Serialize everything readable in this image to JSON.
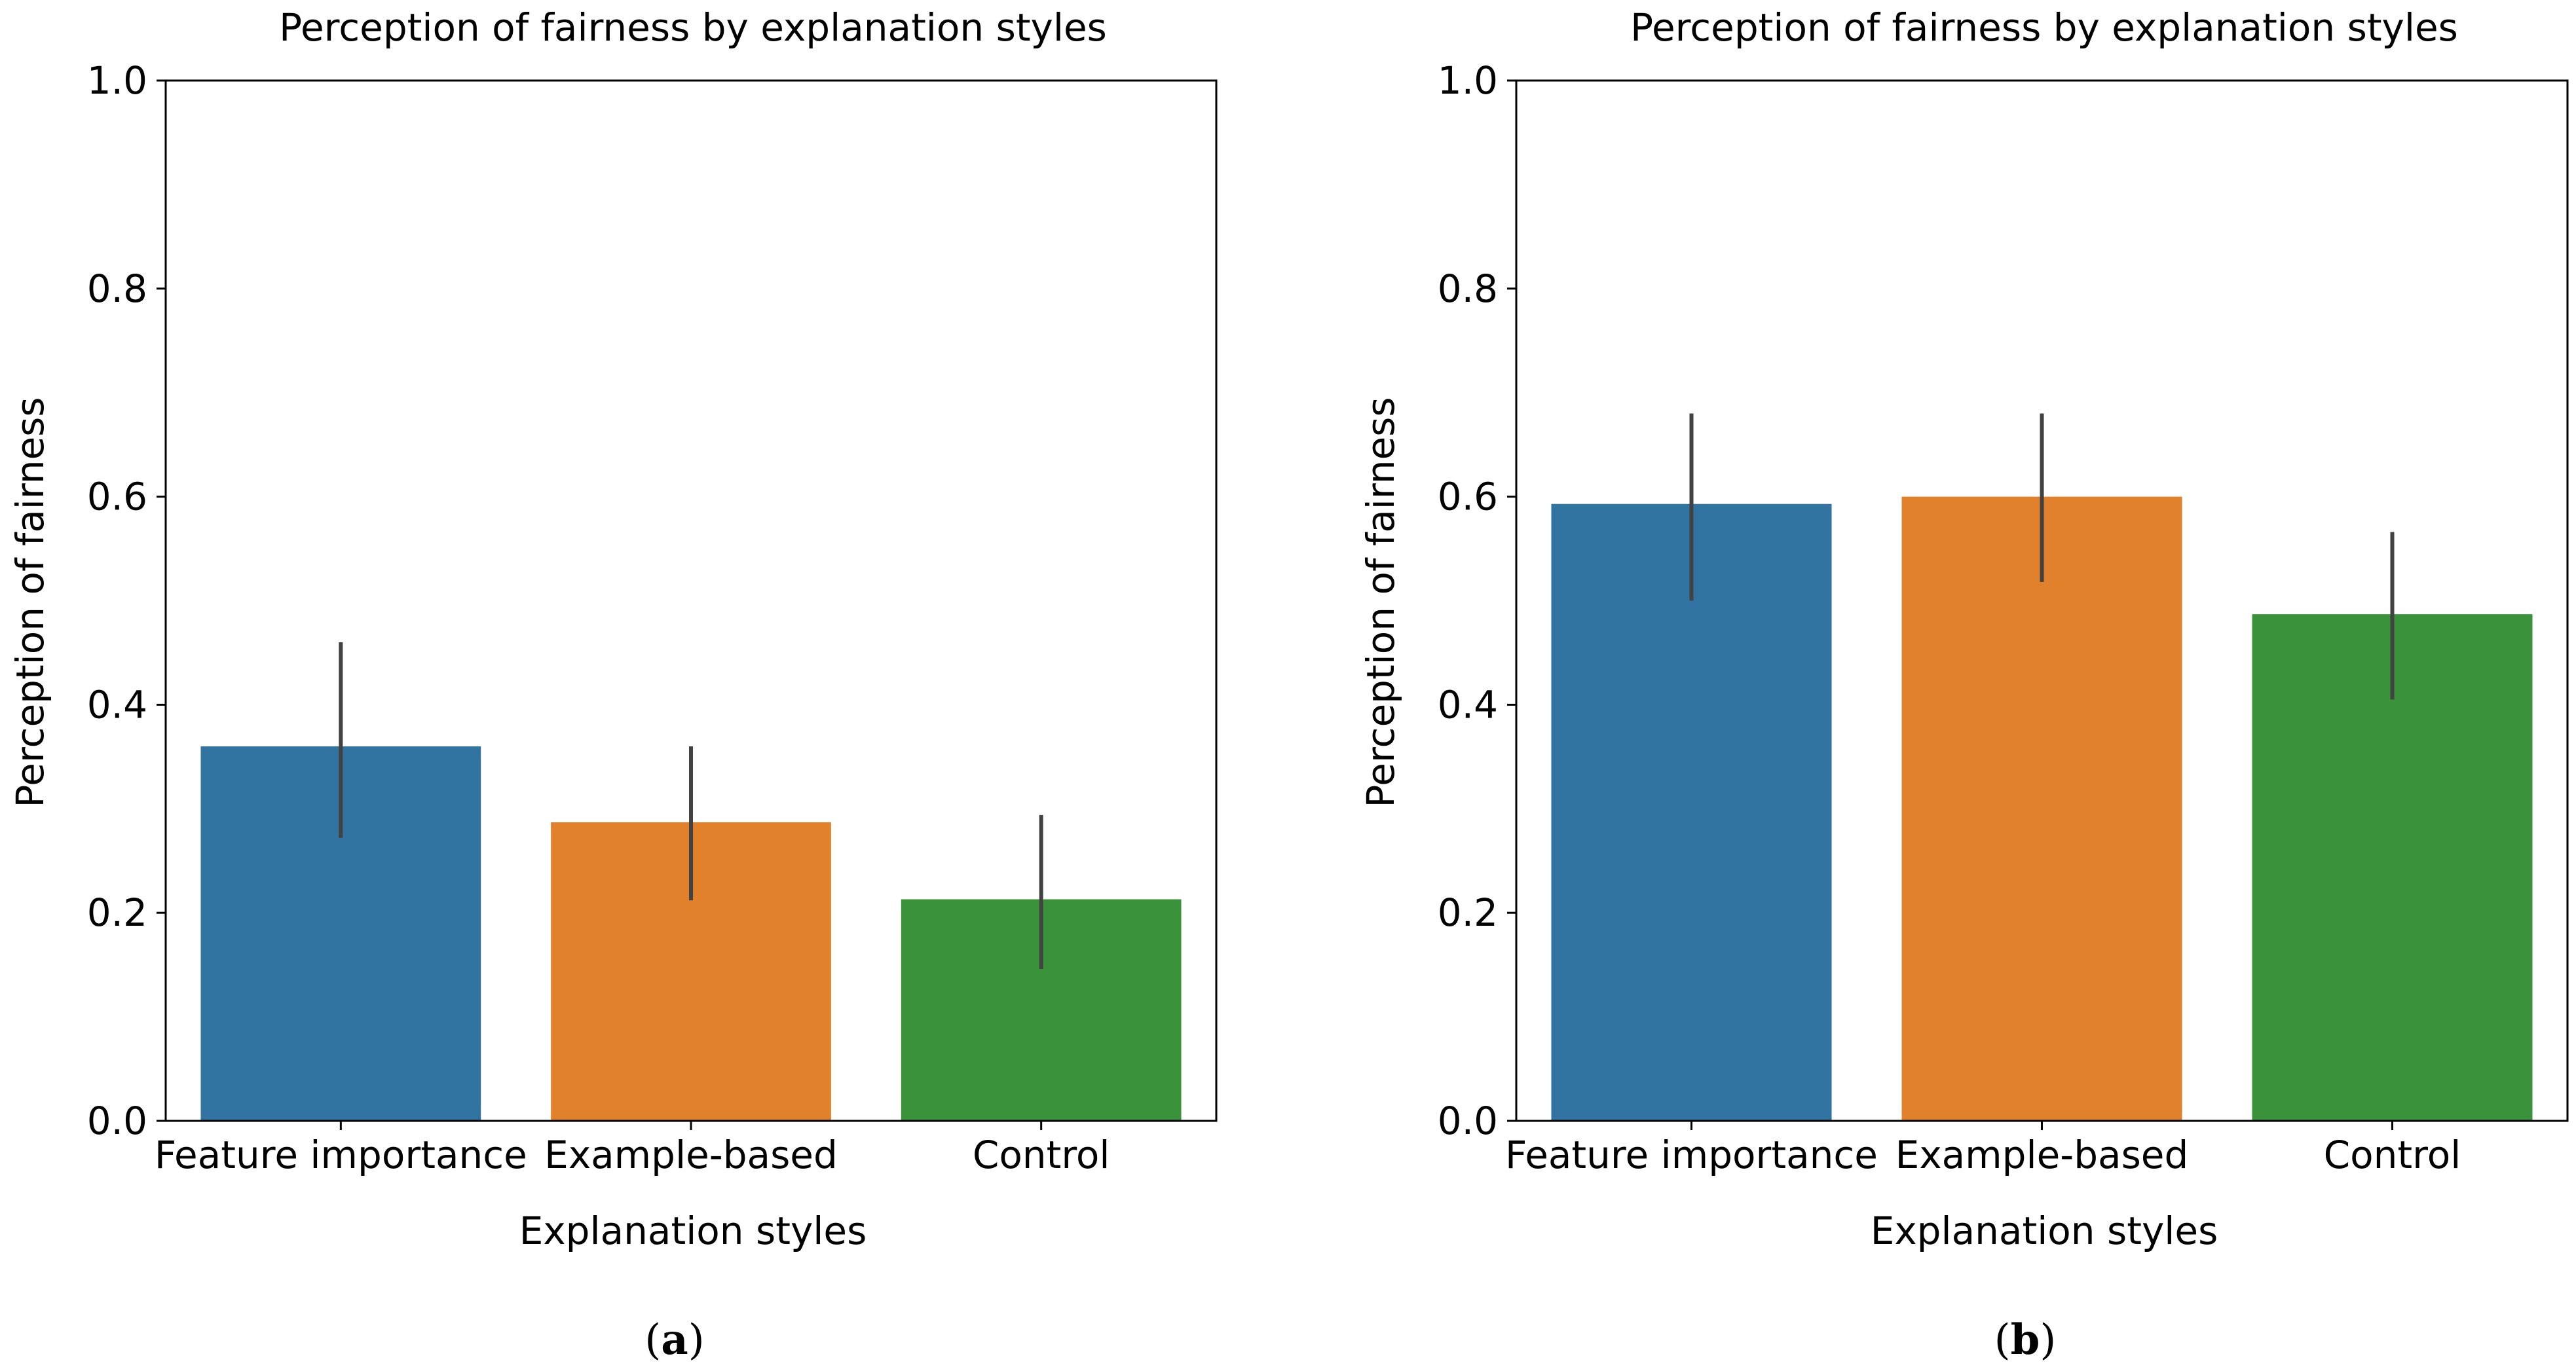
{
  "figure": {
    "panels": [
      {
        "caption_open": "(",
        "caption_letter": "a",
        "caption_close": ")"
      },
      {
        "caption_open": "(",
        "caption_letter": "b",
        "caption_close": ")"
      }
    ]
  },
  "chart_data": [
    {
      "type": "bar",
      "title": "Perception of fairness by explanation styles",
      "xlabel": "Explanation styles",
      "ylabel": "Perception of fairness",
      "categories": [
        "Feature importance",
        "Example-based",
        "Control"
      ],
      "values": [
        0.36,
        0.287,
        0.213
      ],
      "error_low": [
        0.272,
        0.212,
        0.146
      ],
      "error_high": [
        0.46,
        0.36,
        0.294
      ],
      "colors": [
        "#3274a1",
        "#e1812c",
        "#3a923a"
      ],
      "ylim": [
        0,
        1.0
      ],
      "yticks": [
        0.0,
        0.2,
        0.4,
        0.6,
        0.8,
        1.0
      ],
      "ytick_labels": [
        "0.0",
        "0.2",
        "0.4",
        "0.6",
        "0.8",
        "1.0"
      ],
      "grid": false
    },
    {
      "type": "bar",
      "title": "Perception of fairness by explanation styles",
      "xlabel": "Explanation styles",
      "ylabel": "Perception of fairness",
      "categories": [
        "Feature importance",
        "Example-based",
        "Control"
      ],
      "values": [
        0.593,
        0.6,
        0.487
      ],
      "error_low": [
        0.5,
        0.518,
        0.405
      ],
      "error_high": [
        0.68,
        0.68,
        0.566
      ],
      "colors": [
        "#3274a1",
        "#e1812c",
        "#3a923a"
      ],
      "ylim": [
        0,
        1.0
      ],
      "yticks": [
        0.0,
        0.2,
        0.4,
        0.6,
        0.8,
        1.0
      ],
      "ytick_labels": [
        "0.0",
        "0.2",
        "0.4",
        "0.6",
        "0.8",
        "1.0"
      ],
      "grid": false
    }
  ]
}
